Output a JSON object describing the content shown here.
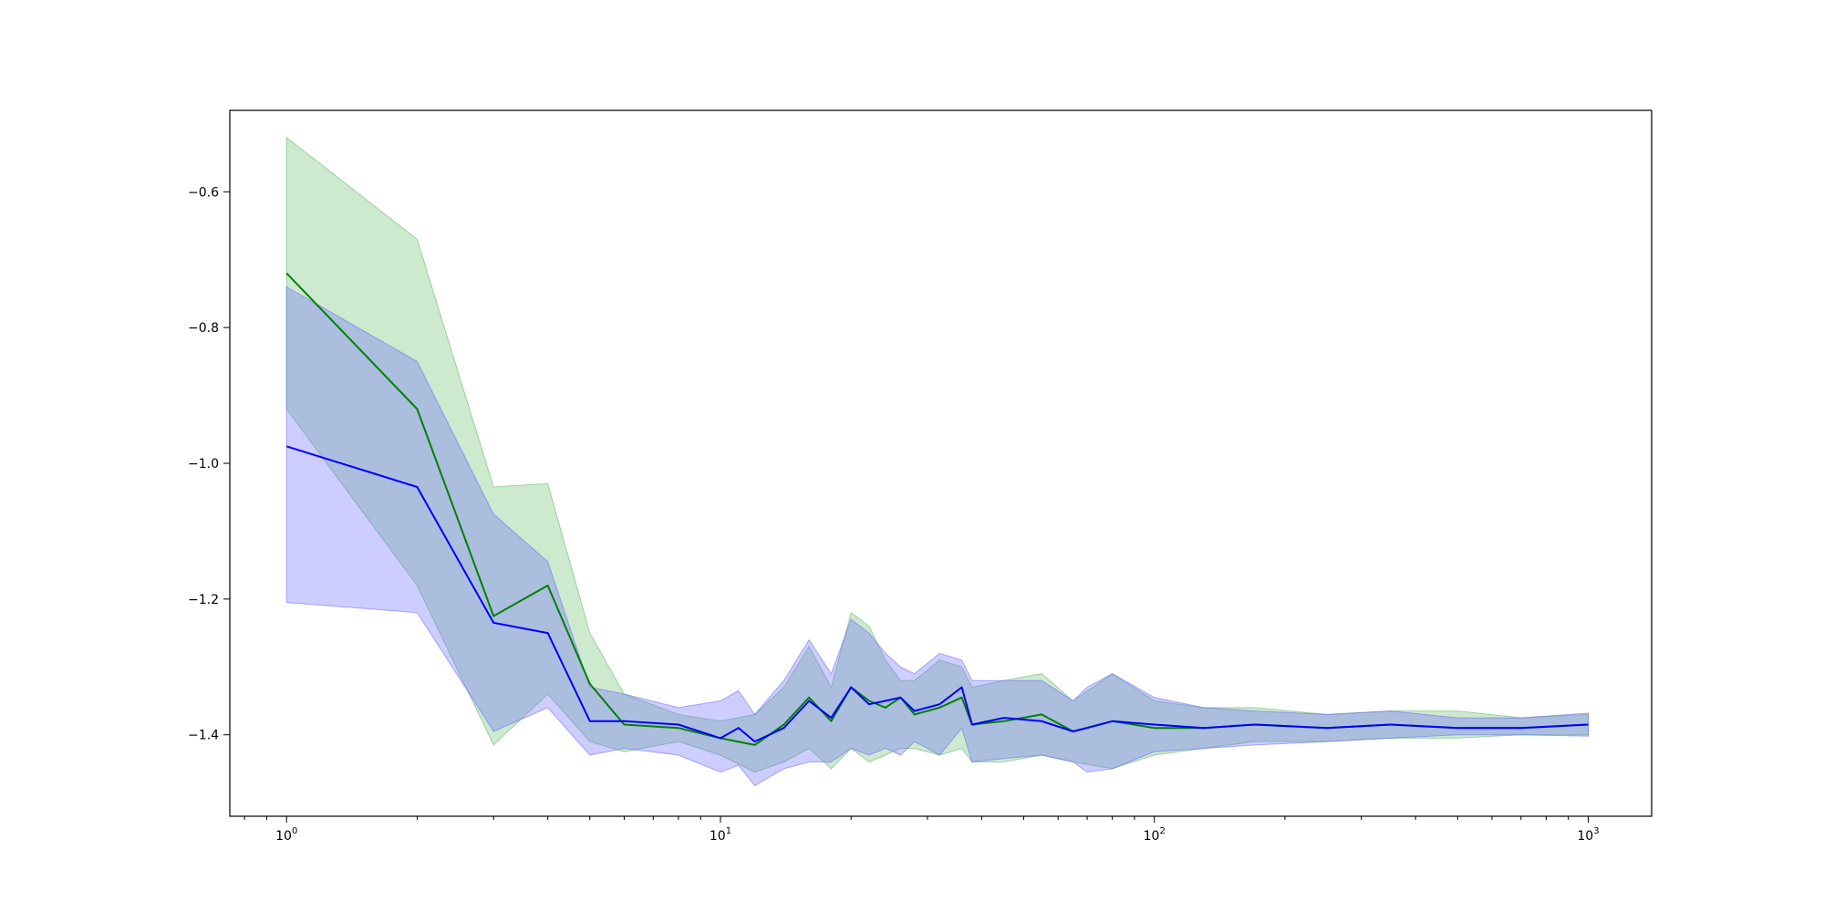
{
  "chart_data": {
    "type": "line",
    "title": "",
    "xlabel": "",
    "ylabel": "",
    "xscale": "log",
    "xlim": [
      0.74,
      1400
    ],
    "ylim": [
      -1.52,
      -0.48
    ],
    "grid": false,
    "x_tick_labels": [
      {
        "value": 1,
        "base": "10",
        "exp": "0"
      },
      {
        "value": 10,
        "base": "10",
        "exp": "1"
      },
      {
        "value": 100,
        "base": "10",
        "exp": "2"
      },
      {
        "value": 1000,
        "base": "10",
        "exp": "3"
      }
    ],
    "y_ticks": [
      -0.6,
      -0.8,
      -1.0,
      -1.2,
      -1.4
    ],
    "y_tick_labels": [
      "−0.6",
      "−0.8",
      "−1.0",
      "−1.2",
      "−1.4"
    ],
    "series": [
      {
        "color": "#008000",
        "band_color": "#4caf50",
        "band_opacity": 0.28,
        "points": [
          [
            1,
            -0.72,
            -0.52,
            -0.92
          ],
          [
            2,
            -0.92,
            -0.67,
            -1.18
          ],
          [
            3,
            -1.225,
            -1.035,
            -1.415
          ],
          [
            4,
            -1.18,
            -1.03,
            -1.34
          ],
          [
            5,
            -1.325,
            -1.25,
            -1.41
          ],
          [
            6,
            -1.385,
            -1.34,
            -1.425
          ],
          [
            8,
            -1.39,
            -1.37,
            -1.41
          ],
          [
            10,
            -1.405,
            -1.38,
            -1.43
          ],
          [
            12,
            -1.415,
            -1.37,
            -1.455
          ],
          [
            14,
            -1.385,
            -1.33,
            -1.44
          ],
          [
            16,
            -1.345,
            -1.27,
            -1.42
          ],
          [
            18,
            -1.38,
            -1.33,
            -1.45
          ],
          [
            20,
            -1.33,
            -1.22,
            -1.42
          ],
          [
            22,
            -1.35,
            -1.24,
            -1.44
          ],
          [
            24,
            -1.36,
            -1.29,
            -1.43
          ],
          [
            26,
            -1.345,
            -1.32,
            -1.42
          ],
          [
            28,
            -1.37,
            -1.32,
            -1.42
          ],
          [
            32,
            -1.36,
            -1.29,
            -1.43
          ],
          [
            36,
            -1.345,
            -1.3,
            -1.42
          ],
          [
            38,
            -1.385,
            -1.33,
            -1.44
          ],
          [
            45,
            -1.38,
            -1.32,
            -1.44
          ],
          [
            55,
            -1.37,
            -1.31,
            -1.43
          ],
          [
            65,
            -1.395,
            -1.35,
            -1.44
          ],
          [
            80,
            -1.38,
            -1.31,
            -1.45
          ],
          [
            100,
            -1.39,
            -1.35,
            -1.43
          ],
          [
            130,
            -1.39,
            -1.36,
            -1.42
          ],
          [
            170,
            -1.385,
            -1.36,
            -1.41
          ],
          [
            250,
            -1.39,
            -1.37,
            -1.41
          ],
          [
            350,
            -1.385,
            -1.365,
            -1.405
          ],
          [
            500,
            -1.39,
            -1.365,
            -1.405
          ],
          [
            700,
            -1.39,
            -1.375,
            -1.4
          ],
          [
            1000,
            -1.385,
            -1.37,
            -1.4
          ]
        ]
      },
      {
        "color": "#0000ff",
        "band_color": "#6666ff",
        "band_opacity": 0.33,
        "points": [
          [
            1,
            -0.975,
            -0.74,
            -1.205
          ],
          [
            2,
            -1.035,
            -0.85,
            -1.22
          ],
          [
            3,
            -1.235,
            -1.075,
            -1.395
          ],
          [
            4,
            -1.25,
            -1.145,
            -1.36
          ],
          [
            5,
            -1.38,
            -1.33,
            -1.43
          ],
          [
            6,
            -1.38,
            -1.34,
            -1.42
          ],
          [
            8,
            -1.385,
            -1.36,
            -1.43
          ],
          [
            10,
            -1.405,
            -1.35,
            -1.455
          ],
          [
            11,
            -1.39,
            -1.335,
            -1.445
          ],
          [
            12,
            -1.41,
            -1.37,
            -1.475
          ],
          [
            14,
            -1.39,
            -1.32,
            -1.45
          ],
          [
            16,
            -1.35,
            -1.26,
            -1.44
          ],
          [
            18,
            -1.375,
            -1.31,
            -1.44
          ],
          [
            20,
            -1.33,
            -1.23,
            -1.42
          ],
          [
            22,
            -1.355,
            -1.25,
            -1.43
          ],
          [
            24,
            -1.35,
            -1.28,
            -1.42
          ],
          [
            26,
            -1.345,
            -1.3,
            -1.43
          ],
          [
            28,
            -1.365,
            -1.31,
            -1.41
          ],
          [
            32,
            -1.355,
            -1.28,
            -1.43
          ],
          [
            36,
            -1.33,
            -1.29,
            -1.39
          ],
          [
            38,
            -1.385,
            -1.32,
            -1.44
          ],
          [
            45,
            -1.375,
            -1.32,
            -1.435
          ],
          [
            55,
            -1.38,
            -1.32,
            -1.43
          ],
          [
            65,
            -1.395,
            -1.35,
            -1.44
          ],
          [
            70,
            -1.39,
            -1.33,
            -1.455
          ],
          [
            80,
            -1.38,
            -1.31,
            -1.45
          ],
          [
            100,
            -1.385,
            -1.345,
            -1.425
          ],
          [
            130,
            -1.39,
            -1.36,
            -1.42
          ],
          [
            170,
            -1.385,
            -1.365,
            -1.415
          ],
          [
            250,
            -1.39,
            -1.37,
            -1.41
          ],
          [
            350,
            -1.385,
            -1.365,
            -1.405
          ],
          [
            500,
            -1.39,
            -1.375,
            -1.4
          ],
          [
            700,
            -1.39,
            -1.375,
            -1.4
          ],
          [
            1000,
            -1.385,
            -1.368,
            -1.402
          ]
        ]
      }
    ]
  }
}
